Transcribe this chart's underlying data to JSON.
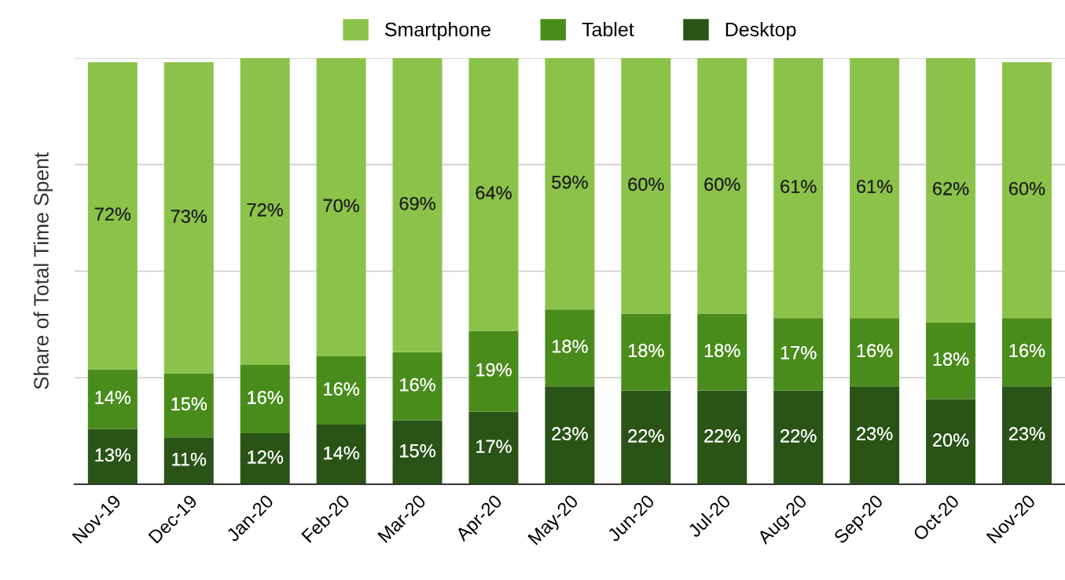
{
  "chart_data": {
    "type": "bar",
    "stacked": true,
    "ylabel": "Share of Total Time Spent",
    "categories": [
      "Nov-19",
      "Dec-19",
      "Jan-20",
      "Feb-20",
      "Mar-20",
      "Apr-20",
      "May-20",
      "Jun-20",
      "Jul-20",
      "Aug-20",
      "Sep-20",
      "Oct-20",
      "Nov-20"
    ],
    "series": [
      {
        "name": "Desktop",
        "color": "#2a5417",
        "values": [
          13,
          11,
          12,
          14,
          15,
          17,
          23,
          22,
          22,
          22,
          23,
          20,
          23
        ],
        "value_labels": [
          "13%",
          "11%",
          "12%",
          "14%",
          "15%",
          "17%",
          "23%",
          "22%",
          "22%",
          "22%",
          "23%",
          "20%",
          "23%"
        ]
      },
      {
        "name": "Tablet",
        "color": "#4a8c1c",
        "values": [
          14,
          15,
          16,
          16,
          16,
          19,
          18,
          18,
          18,
          17,
          16,
          18,
          16
        ],
        "value_labels": [
          "14%",
          "15%",
          "16%",
          "16%",
          "16%",
          "19%",
          "18%",
          "18%",
          "18%",
          "17%",
          "16%",
          "18%",
          "16%"
        ]
      },
      {
        "name": "Smartphone",
        "color": "#8bc34a",
        "values": [
          72,
          73,
          72,
          70,
          69,
          64,
          59,
          60,
          60,
          61,
          61,
          62,
          60
        ],
        "value_labels": [
          "72%",
          "73%",
          "72%",
          "70%",
          "69%",
          "64%",
          "59%",
          "60%",
          "60%",
          "61%",
          "61%",
          "62%",
          "60%"
        ]
      }
    ],
    "ylim": [
      0,
      100
    ],
    "yticks": [
      {
        "value": 0,
        "label": null
      },
      {
        "value": 25,
        "label": null
      },
      {
        "value": 50,
        "label": null
      },
      {
        "value": 75,
        "label": null
      },
      {
        "value": 100,
        "label": null
      }
    ],
    "tick_labels": "x",
    "grid": "y",
    "legend": "top"
  }
}
